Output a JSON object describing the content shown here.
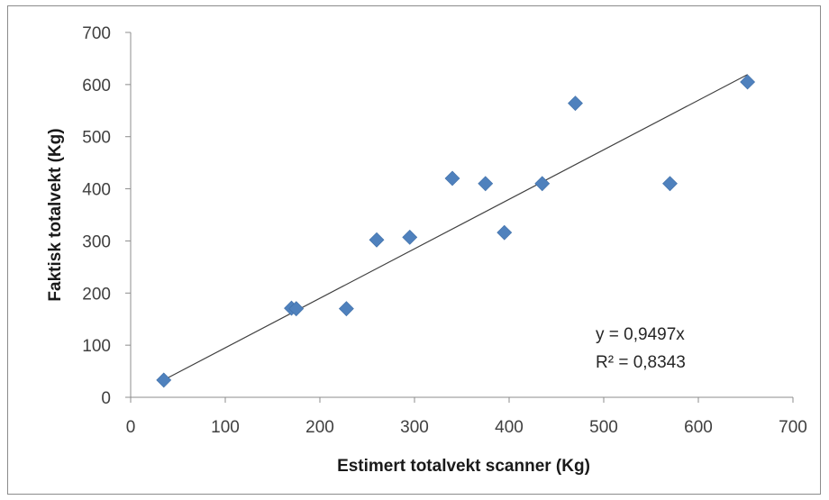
{
  "chart_data": {
    "type": "scatter",
    "title": "",
    "xlabel": "Estimert totalvekt scanner (Kg)",
    "ylabel": "Faktisk totalvekt (Kg)",
    "xlim": [
      0,
      700
    ],
    "ylim": [
      0,
      700
    ],
    "x_ticks": [
      "0",
      "100",
      "200",
      "300",
      "400",
      "500",
      "600",
      "700"
    ],
    "y_ticks": [
      "0",
      "100",
      "200",
      "300",
      "400",
      "500",
      "600",
      "700"
    ],
    "grid": false,
    "legend": "none",
    "marker": "diamond",
    "marker_color": "#4f81bd",
    "trendline_color": "#404040",
    "points": [
      {
        "x": 35,
        "y": 33
      },
      {
        "x": 170,
        "y": 171
      },
      {
        "x": 175,
        "y": 170
      },
      {
        "x": 228,
        "y": 170
      },
      {
        "x": 260,
        "y": 302
      },
      {
        "x": 295,
        "y": 307
      },
      {
        "x": 340,
        "y": 420
      },
      {
        "x": 375,
        "y": 410
      },
      {
        "x": 395,
        "y": 316
      },
      {
        "x": 435,
        "y": 410
      },
      {
        "x": 470,
        "y": 564
      },
      {
        "x": 570,
        "y": 410
      },
      {
        "x": 652,
        "y": 605
      }
    ],
    "trendline": {
      "slope": 0.9497,
      "x_range": [
        35,
        652
      ]
    },
    "annotations": [
      "y = 0,9497x",
      "R² = 0,8343"
    ]
  }
}
